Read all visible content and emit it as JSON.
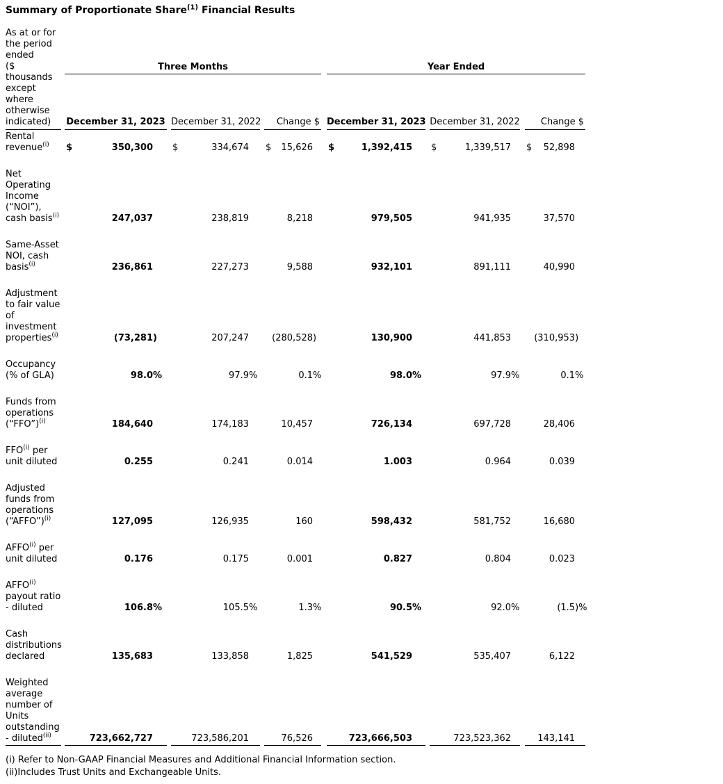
{
  "page": {
    "background_color": "#ffffff",
    "text_color": "#000000"
  },
  "title": {
    "prefix": "Summary of Proportionate Share",
    "sup": "(1)",
    "suffix": " Financial Results"
  },
  "table": {
    "currency_symbol": "$",
    "row_header": "As at or for\nthe period\nended\n($\nthousands\nexcept\nwhere\notherwise\nindicated)",
    "groups": [
      {
        "label": "Three Months"
      },
      {
        "label": "Year Ended"
      }
    ],
    "columns": [
      "December 31, 2023",
      "December 31, 2022",
      "Change $",
      "December 31, 2023",
      "December 31, 2022",
      "Change $"
    ],
    "rows": [
      {
        "parts": [
          [
            "t",
            "Rental\nrevenue"
          ],
          [
            "s",
            "(i)"
          ]
        ],
        "dollar": true,
        "values": [
          "350,300",
          "334,674",
          "15,626",
          "1,392,415",
          "1,339,517",
          "52,898"
        ]
      },
      {
        "parts": [
          [
            "t",
            "Net\nOperating\nIncome\n(“NOI”),\ncash basis"
          ],
          [
            "s",
            "(i)"
          ]
        ],
        "values": [
          "247,037",
          "238,819",
          "8,218",
          "979,505",
          "941,935",
          "37,570"
        ]
      },
      {
        "parts": [
          [
            "t",
            "Same-Asset\nNOI, cash\nbasis"
          ],
          [
            "s",
            "(i)"
          ]
        ],
        "values": [
          "236,861",
          "227,273",
          "9,588",
          "932,101",
          "891,111",
          "40,990"
        ]
      },
      {
        "parts": [
          [
            "t",
            "Adjustment\nto fair value\nof\ninvestment\nproperties"
          ],
          [
            "s",
            "(i)"
          ]
        ],
        "values": [
          "(73,281)",
          "207,247",
          "(280,528)",
          "130,900",
          "441,853",
          "(310,953)"
        ]
      },
      {
        "parts": [
          [
            "t",
            "Occupancy\n(% of GLA)"
          ]
        ],
        "values": [
          "98.0%",
          "97.9%",
          "0.1%",
          "98.0%",
          "97.9%",
          "0.1%"
        ]
      },
      {
        "parts": [
          [
            "t",
            "Funds from\noperations\n(“FFO”)"
          ],
          [
            "s",
            "(i)"
          ]
        ],
        "values": [
          "184,640",
          "174,183",
          "10,457",
          "726,134",
          "697,728",
          "28,406"
        ]
      },
      {
        "parts": [
          [
            "t",
            "FFO"
          ],
          [
            "s",
            "(i)"
          ],
          [
            "t",
            " per\nunit diluted"
          ]
        ],
        "values": [
          "0.255",
          "0.241",
          "0.014",
          "1.003",
          "0.964",
          "0.039"
        ]
      },
      {
        "parts": [
          [
            "t",
            "Adjusted\nfunds from\noperations\n(“AFFO”)"
          ],
          [
            "s",
            "(i)"
          ]
        ],
        "values": [
          "127,095",
          "126,935",
          "160",
          "598,432",
          "581,752",
          "16,680"
        ]
      },
      {
        "parts": [
          [
            "t",
            "AFFO"
          ],
          [
            "s",
            "(i)"
          ],
          [
            "t",
            " per\nunit diluted"
          ]
        ],
        "values": [
          "0.176",
          "0.175",
          "0.001",
          "0.827",
          "0.804",
          "0.023"
        ]
      },
      {
        "parts": [
          [
            "t",
            "AFFO"
          ],
          [
            "s",
            "(i)"
          ],
          [
            "t",
            "\npayout ratio\n- diluted"
          ]
        ],
        "values": [
          "106.8%",
          "105.5%",
          "1.3%",
          "90.5%",
          "92.0%",
          "(1.5)%"
        ]
      },
      {
        "parts": [
          [
            "t",
            "Cash\ndistributions\ndeclared"
          ]
        ],
        "values": [
          "135,683",
          "133,858",
          "1,825",
          "541,529",
          "535,407",
          "6,122"
        ]
      },
      {
        "parts": [
          [
            "t",
            "Weighted\naverage\nnumber of\nUnits\noutstanding\n- diluted"
          ],
          [
            "s",
            "(ii)"
          ]
        ],
        "values": [
          "723,662,727",
          "723,586,201",
          "76,526",
          "723,666,503",
          "723,523,362",
          "143,141"
        ]
      }
    ]
  },
  "footnotes": [
    "(i) Refer to Non-GAAP Financial Measures and Additional Financial Information section.",
    "(ii)Includes Trust Units and Exchangeable Units."
  ]
}
